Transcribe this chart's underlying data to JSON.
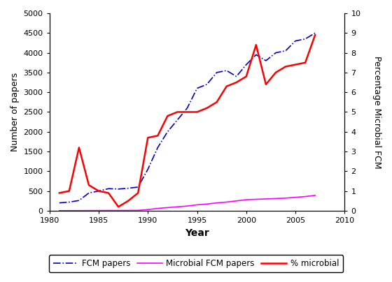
{
  "years": [
    1981,
    1982,
    1983,
    1984,
    1985,
    1986,
    1987,
    1988,
    1989,
    1990,
    1991,
    1992,
    1993,
    1994,
    1995,
    1996,
    1997,
    1998,
    1999,
    2000,
    2001,
    2002,
    2003,
    2004,
    2005,
    2006,
    2007
  ],
  "fcm_papers": [
    200,
    220,
    260,
    450,
    500,
    560,
    550,
    570,
    600,
    1050,
    1600,
    2000,
    2300,
    2600,
    3100,
    3200,
    3500,
    3550,
    3400,
    3700,
    3950,
    3800,
    4000,
    4050,
    4300,
    4350,
    4500
  ],
  "microbial_fcm_papers": [
    2,
    3,
    4,
    5,
    6,
    7,
    7,
    8,
    10,
    30,
    60,
    80,
    100,
    120,
    150,
    170,
    200,
    220,
    250,
    280,
    290,
    300,
    310,
    320,
    340,
    360,
    390
  ],
  "pct_microbial": [
    0.9,
    1.0,
    3.2,
    1.3,
    1.0,
    0.9,
    0.2,
    0.5,
    0.9,
    3.7,
    3.8,
    4.8,
    5.0,
    5.0,
    5.0,
    5.2,
    5.5,
    6.3,
    6.5,
    6.8,
    8.4,
    6.4,
    7.0,
    7.3,
    7.4,
    7.5,
    8.9
  ],
  "fcm_color": "#0000CC",
  "microbial_color": "#FF00FF",
  "pct_color": "#FF0000",
  "xlabel": "Year",
  "ylabel_left": "Number of papers",
  "ylabel_right": "Percentage Microbial FCM",
  "xlim": [
    1980,
    2010
  ],
  "ylim_left": [
    0,
    5000
  ],
  "ylim_right": [
    0,
    10
  ],
  "xticks": [
    1980,
    1985,
    1990,
    1995,
    2000,
    2005,
    2010
  ],
  "yticks_left": [
    0,
    500,
    1000,
    1500,
    2000,
    2500,
    3000,
    3500,
    4000,
    4500,
    5000
  ],
  "yticks_right": [
    0,
    1,
    2,
    3,
    4,
    5,
    6,
    7,
    8,
    9,
    10
  ],
  "legend_labels": [
    "FCM papers",
    "Microbial FCM papers",
    "% microbial"
  ],
  "background_color": "#ffffff"
}
